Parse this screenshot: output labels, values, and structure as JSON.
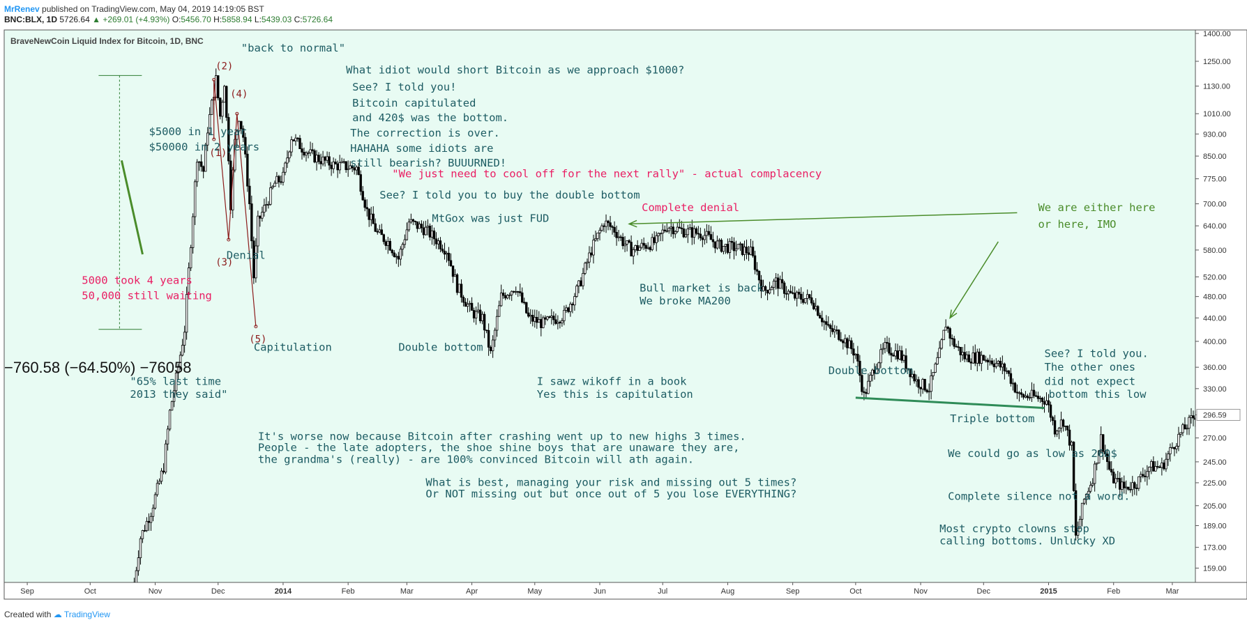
{
  "header": {
    "publisher": "MrRenev",
    "published_text": "published on TradingView.com, May 04, 2019 14:19:05 BST",
    "symbol": "BNC:BLX, 1D",
    "last": "5726.64",
    "change": "+269.01 (+4.93%)",
    "open_label": "O:",
    "open": "5456.70",
    "high_label": "H:",
    "high": "5858.94",
    "low_label": "L:",
    "low": "5439.03",
    "close_label": "C:",
    "close": "5726.64"
  },
  "footer": {
    "created_with": "Created with",
    "brand": "TradingView"
  },
  "colors": {
    "background": "#e8fbf3",
    "teal_text": "#1d5c63",
    "pink_text": "#e91e63",
    "green_line": "#2e8b57",
    "arrow_green": "#4a8c2a",
    "wave_red": "#8b1a1a",
    "candle": "#000000"
  },
  "chart_data": {
    "type": "candlestick",
    "title": "BraveNewCoin Liquid Index for Bitcoin, 1D, BNC",
    "scale": "log",
    "ylim": [
      150,
      1420
    ],
    "y_ticks": [
      1400,
      1250,
      1130,
      1010,
      930,
      850,
      775,
      700,
      640,
      580,
      520,
      480,
      440,
      400,
      360,
      330,
      296.59,
      270,
      245,
      225,
      205,
      189,
      173,
      159
    ],
    "y_tick_labels": [
      "1400.00",
      "1250.00",
      "1130.00",
      "1010.00",
      "930.00",
      "850.00",
      "775.00",
      "700.00",
      "640.00",
      "580.00",
      "520.00",
      "480.00",
      "440.00",
      "400.00",
      "360.00",
      "330.00",
      "296.59",
      "270.00",
      "245.00",
      "225.00",
      "205.00",
      "189.00",
      "173.00",
      "159.00"
    ],
    "last_price_label": "296.59",
    "x_range": [
      "2013-08-21",
      "2015-03-12"
    ],
    "x_ticks": [
      {
        "date": "2013-09-01",
        "label": "Sep",
        "bold": false
      },
      {
        "date": "2013-10-01",
        "label": "Oct",
        "bold": false
      },
      {
        "date": "2013-11-01",
        "label": "Nov",
        "bold": false
      },
      {
        "date": "2013-12-01",
        "label": "Dec",
        "bold": false
      },
      {
        "date": "2014-01-01",
        "label": "2014",
        "bold": true
      },
      {
        "date": "2014-02-01",
        "label": "Feb",
        "bold": false
      },
      {
        "date": "2014-03-01",
        "label": "Mar",
        "bold": false
      },
      {
        "date": "2014-04-01",
        "label": "Apr",
        "bold": false
      },
      {
        "date": "2014-05-01",
        "label": "May",
        "bold": false
      },
      {
        "date": "2014-06-01",
        "label": "Jun",
        "bold": false
      },
      {
        "date": "2014-07-01",
        "label": "Jul",
        "bold": false
      },
      {
        "date": "2014-08-01",
        "label": "Aug",
        "bold": false
      },
      {
        "date": "2014-09-01",
        "label": "Sep",
        "bold": false
      },
      {
        "date": "2014-10-01",
        "label": "Oct",
        "bold": false
      },
      {
        "date": "2014-11-01",
        "label": "Nov",
        "bold": false
      },
      {
        "date": "2014-12-01",
        "label": "Dec",
        "bold": false
      },
      {
        "date": "2015-01-01",
        "label": "2015",
        "bold": true
      },
      {
        "date": "2015-02-01",
        "label": "Feb",
        "bold": false
      },
      {
        "date": "2015-03-01",
        "label": "Mar",
        "bold": false
      }
    ],
    "price_path": [
      [
        "2013-10-22",
        150
      ],
      [
        "2013-10-25",
        180
      ],
      [
        "2013-10-30",
        200
      ],
      [
        "2013-11-05",
        240
      ],
      [
        "2013-11-08",
        300
      ],
      [
        "2013-11-12",
        360
      ],
      [
        "2013-11-15",
        420
      ],
      [
        "2013-11-18",
        600
      ],
      [
        "2013-11-21",
        850
      ],
      [
        "2013-11-24",
        800
      ],
      [
        "2013-11-26",
        950
      ],
      [
        "2013-11-30",
        1160
      ],
      [
        "2013-12-02",
        1000
      ],
      [
        "2013-12-04",
        1150
      ],
      [
        "2013-12-06",
        850
      ],
      [
        "2013-12-07",
        700
      ],
      [
        "2013-12-09",
        900
      ],
      [
        "2013-12-11",
        1000
      ],
      [
        "2013-12-13",
        920
      ],
      [
        "2013-12-16",
        700
      ],
      [
        "2013-12-18",
        520
      ],
      [
        "2013-12-20",
        650
      ],
      [
        "2013-12-24",
        700
      ],
      [
        "2013-12-28",
        760
      ],
      [
        "2014-01-01",
        780
      ],
      [
        "2014-01-05",
        920
      ],
      [
        "2014-01-10",
        880
      ],
      [
        "2014-01-15",
        850
      ],
      [
        "2014-01-25",
        820
      ],
      [
        "2014-02-05",
        810
      ],
      [
        "2014-02-10",
        680
      ],
      [
        "2014-02-15",
        620
      ],
      [
        "2014-02-20",
        600
      ],
      [
        "2014-02-25",
        560
      ],
      [
        "2014-03-02",
        650
      ],
      [
        "2014-03-10",
        630
      ],
      [
        "2014-03-20",
        580
      ],
      [
        "2014-03-25",
        500
      ],
      [
        "2014-04-01",
        450
      ],
      [
        "2014-04-06",
        440
      ],
      [
        "2014-04-10",
        380
      ],
      [
        "2014-04-15",
        480
      ],
      [
        "2014-04-22",
        500
      ],
      [
        "2014-04-28",
        440
      ],
      [
        "2014-05-05",
        430
      ],
      [
        "2014-05-15",
        445
      ],
      [
        "2014-05-22",
        500
      ],
      [
        "2014-05-28",
        580
      ],
      [
        "2014-06-03",
        650
      ],
      [
        "2014-06-08",
        630
      ],
      [
        "2014-06-12",
        600
      ],
      [
        "2014-06-16",
        580
      ],
      [
        "2014-06-22",
        590
      ],
      [
        "2014-06-28",
        600
      ],
      [
        "2014-07-03",
        640
      ],
      [
        "2014-07-12",
        625
      ],
      [
        "2014-07-20",
        620
      ],
      [
        "2014-07-28",
        590
      ],
      [
        "2014-08-05",
        585
      ],
      [
        "2014-08-12",
        575
      ],
      [
        "2014-08-18",
        490
      ],
      [
        "2014-08-24",
        510
      ],
      [
        "2014-09-01",
        480
      ],
      [
        "2014-09-10",
        475
      ],
      [
        "2014-09-18",
        420
      ],
      [
        "2014-09-24",
        410
      ],
      [
        "2014-10-01",
        380
      ],
      [
        "2014-10-05",
        320
      ],
      [
        "2014-10-10",
        360
      ],
      [
        "2014-10-15",
        390
      ],
      [
        "2014-10-22",
        380
      ],
      [
        "2014-10-30",
        340
      ],
      [
        "2014-11-05",
        330
      ],
      [
        "2014-11-10",
        380
      ],
      [
        "2014-11-13",
        430
      ],
      [
        "2014-11-16",
        400
      ],
      [
        "2014-11-22",
        375
      ],
      [
        "2014-11-30",
        375
      ],
      [
        "2014-12-05",
        370
      ],
      [
        "2014-12-12",
        355
      ],
      [
        "2014-12-18",
        320
      ],
      [
        "2014-12-24",
        320
      ],
      [
        "2014-12-31",
        315
      ],
      [
        "2015-01-04",
        280
      ],
      [
        "2015-01-08",
        290
      ],
      [
        "2015-01-12",
        260
      ],
      [
        "2015-01-14",
        180
      ],
      [
        "2015-01-18",
        210
      ],
      [
        "2015-01-22",
        230
      ],
      [
        "2015-01-26",
        270
      ],
      [
        "2015-01-31",
        230
      ],
      [
        "2015-02-06",
        220
      ],
      [
        "2015-02-12",
        225
      ],
      [
        "2015-02-18",
        240
      ],
      [
        "2015-02-24",
        240
      ],
      [
        "2015-03-01",
        260
      ],
      [
        "2015-03-05",
        275
      ],
      [
        "2015-03-12",
        296.59
      ]
    ],
    "annotations": [
      {
        "text": "\"back to normal\"",
        "style": "teal",
        "date": "2013-12-12",
        "price": 1300
      },
      {
        "text": "What idiot would short Bitcoin as we approach $1000?",
        "style": "teal",
        "date": "2014-01-31",
        "price": 1190
      },
      {
        "text": "See? I told you!",
        "style": "teal",
        "date": "2014-02-03",
        "price": 1110
      },
      {
        "text": "Bitcoin capitulated",
        "style": "teal",
        "date": "2014-02-03",
        "price": 1040
      },
      {
        "text": "and 420$ was the bottom.",
        "style": "teal",
        "date": "2014-02-03",
        "price": 980
      },
      {
        "text": "The correction is over.",
        "style": "teal",
        "date": "2014-02-02",
        "price": 920
      },
      {
        "text": "HAHAHA some idiots are",
        "style": "teal",
        "date": "2014-02-02",
        "price": 865
      },
      {
        "text": "still bearish? BUUURNED!",
        "style": "teal",
        "date": "2014-02-02",
        "price": 815
      },
      {
        "text": "\"We just need to cool off for the next rally\" - actual complacency",
        "style": "pink",
        "date": "2014-02-22",
        "price": 780
      },
      {
        "text": "See? I told you to buy the double bottom",
        "style": "teal",
        "date": "2014-02-16",
        "price": 715
      },
      {
        "text": "MtGox was just FUD",
        "style": "teal",
        "date": "2014-03-13",
        "price": 650
      },
      {
        "text": "Complete denial",
        "style": "pink",
        "date": "2014-06-21",
        "price": 680
      },
      {
        "text": "We are either here",
        "style": "green",
        "date": "2014-12-27",
        "price": 680
      },
      {
        "text": "or here, IMO",
        "style": "green",
        "date": "2014-12-27",
        "price": 635
      },
      {
        "text": "$5000 in 1 year",
        "style": "teal",
        "date": "2013-10-29",
        "price": 925
      },
      {
        "text": "$50000 in 2 years",
        "style": "teal",
        "date": "2013-10-29",
        "price": 870
      },
      {
        "text": "Denial",
        "style": "teal",
        "date": "2013-12-05",
        "price": 560
      },
      {
        "text": "5000 took 4 years",
        "style": "pink",
        "date": "2013-09-27",
        "price": 505
      },
      {
        "text": "50,000 still waiting",
        "style": "pink",
        "date": "2013-09-27",
        "price": 475
      },
      {
        "text": "Bull market is back",
        "style": "teal",
        "date": "2014-06-20",
        "price": 490
      },
      {
        "text": "We broke MA200",
        "style": "teal",
        "date": "2014-06-20",
        "price": 465
      },
      {
        "text": "Capitulation",
        "style": "teal",
        "date": "2013-12-18",
        "price": 385
      },
      {
        "text": "Double bottom",
        "style": "teal",
        "date": "2014-02-25",
        "price": 385
      },
      {
        "text": "Double bottom",
        "style": "teal",
        "date": "2014-09-18",
        "price": 350
      },
      {
        "text": "See? I told you.",
        "style": "teal",
        "date": "2014-12-30",
        "price": 375
      },
      {
        "text": "The other ones",
        "style": "teal",
        "date": "2014-12-30",
        "price": 355
      },
      {
        "text": "did not expect",
        "style": "teal",
        "date": "2014-12-30",
        "price": 335
      },
      {
        "text": "bottom this low",
        "style": "teal",
        "date": "2015-01-01",
        "price": 318
      },
      {
        "text": "\"65% last time",
        "style": "teal",
        "date": "2013-10-20",
        "price": 335
      },
      {
        "text": "2013 they said\"",
        "style": "teal",
        "date": "2013-10-20",
        "price": 318
      },
      {
        "text": "I sawz wikoff in a book",
        "style": "teal",
        "date": "2014-05-02",
        "price": 335
      },
      {
        "text": "Yes this is capitulation",
        "style": "teal",
        "date": "2014-05-02",
        "price": 318
      },
      {
        "text": "Triple bottom",
        "style": "teal",
        "date": "2014-11-15",
        "price": 288
      },
      {
        "text": "It's worse now because Bitcoin after crashing went up to new highs 3 times.",
        "style": "teal",
        "date": "2013-12-20",
        "price": 268
      },
      {
        "text": "People - the late adopters, the shoe shine boys that are unaware they are,",
        "style": "teal",
        "date": "2013-12-20",
        "price": 256
      },
      {
        "text": "the grandma's (really) - are 100% convinced Bitcoin will ath again.",
        "style": "teal",
        "date": "2013-12-20",
        "price": 244
      },
      {
        "text": "We could go as low as 260$",
        "style": "teal",
        "date": "2014-11-14",
        "price": 250
      },
      {
        "text": "What is best, managing your risk and missing out 5 times?",
        "style": "teal",
        "date": "2014-03-10",
        "price": 222
      },
      {
        "text": "Or NOT missing out but once out of 5 you lose EVERYTHING?",
        "style": "teal",
        "date": "2014-03-10",
        "price": 212
      },
      {
        "text": "Complete silence not a word.",
        "style": "teal",
        "date": "2014-11-14",
        "price": 210
      },
      {
        "text": "Most crypto clowns stop",
        "style": "teal",
        "date": "2014-11-10",
        "price": 184
      },
      {
        "text": "calling bottoms. Unlucky XD",
        "style": "teal",
        "date": "2014-11-10",
        "price": 175
      }
    ],
    "measure": {
      "text": "−760.58 (−64.50%) −76058",
      "date": "2013-08-21",
      "price": 360,
      "range_top": 1180,
      "range_bottom": 420,
      "date_line": "2013-10-15"
    },
    "wave_points": [
      {
        "label": "(1)",
        "date": "2013-12-01",
        "price": 850,
        "anchor": [
          "2013-11-29",
          910
        ]
      },
      {
        "label": "(2)",
        "date": "2013-12-04",
        "price": 1210,
        "anchor": [
          "2013-11-29",
          1160
        ]
      },
      {
        "label": "(3)",
        "date": "2013-12-04",
        "price": 545,
        "anchor": [
          "2013-12-06",
          605
        ]
      },
      {
        "label": "(4)",
        "date": "2013-12-11",
        "price": 1080,
        "anchor": [
          "2013-12-10",
          1010
        ]
      },
      {
        "label": "(5)",
        "date": "2013-12-20",
        "price": 398,
        "anchor": [
          "2013-12-19",
          425
        ]
      }
    ],
    "support_line": {
      "from": [
        "2014-10-01",
        318
      ],
      "to": [
        "2014-12-30",
        305
      ]
    },
    "arrows": [
      {
        "from": [
          "2014-12-17",
          675
        ],
        "to": [
          "2014-06-15",
          645
        ]
      },
      {
        "from": [
          "2014-12-08",
          600
        ],
        "to": [
          "2014-11-15",
          440
        ]
      },
      {
        "from": [
          "2013-10-16",
          835
        ],
        "to": [
          "2013-10-26",
          570
        ]
      }
    ]
  }
}
